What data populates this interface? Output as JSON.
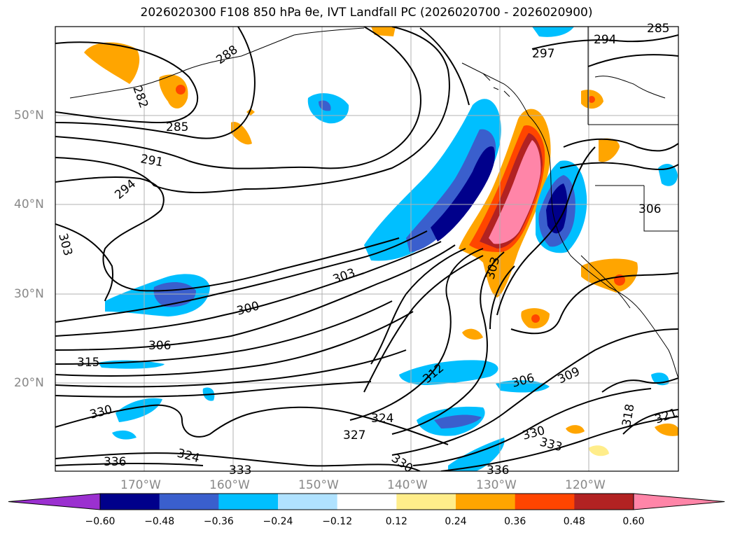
{
  "title": "2026020300 F108 850 hPa θe, IVT Landfall PC (2026020700 - 2026020900)",
  "lat_labels": [
    "50°N",
    "40°N",
    "30°N",
    "20°N"
  ],
  "lon_labels": [
    "170°W",
    "160°W",
    "150°W",
    "140°W",
    "130°W",
    "120°W"
  ],
  "contour_labels": [
    "282",
    "285",
    "288",
    "291",
    "294",
    "297",
    "300",
    "303",
    "303",
    "303",
    "306",
    "306",
    "306",
    "309",
    "312",
    "315",
    "318",
    "321",
    "324",
    "324",
    "327",
    "330",
    "330",
    "330",
    "333",
    "333",
    "336",
    "336",
    "294",
    "285"
  ],
  "colorbar": {
    "tick_labels": [
      "−0.60",
      "−0.48",
      "−0.36",
      "−0.24",
      "−0.12",
      "0.12",
      "0.24",
      "0.36",
      "0.48",
      "0.60"
    ],
    "colors": [
      "#9b30d0",
      "#00008b",
      "#3a5fcd",
      "#00bfff",
      "#b0e2ff",
      "#ffffff",
      "#ffed8a",
      "#ffa500",
      "#ff4500",
      "#b22222",
      "#ff85a8",
      "#ff85a8"
    ]
  },
  "colors": {
    "contour": "#000000",
    "grid": "#b0b0b0",
    "coast": "#000000"
  }
}
